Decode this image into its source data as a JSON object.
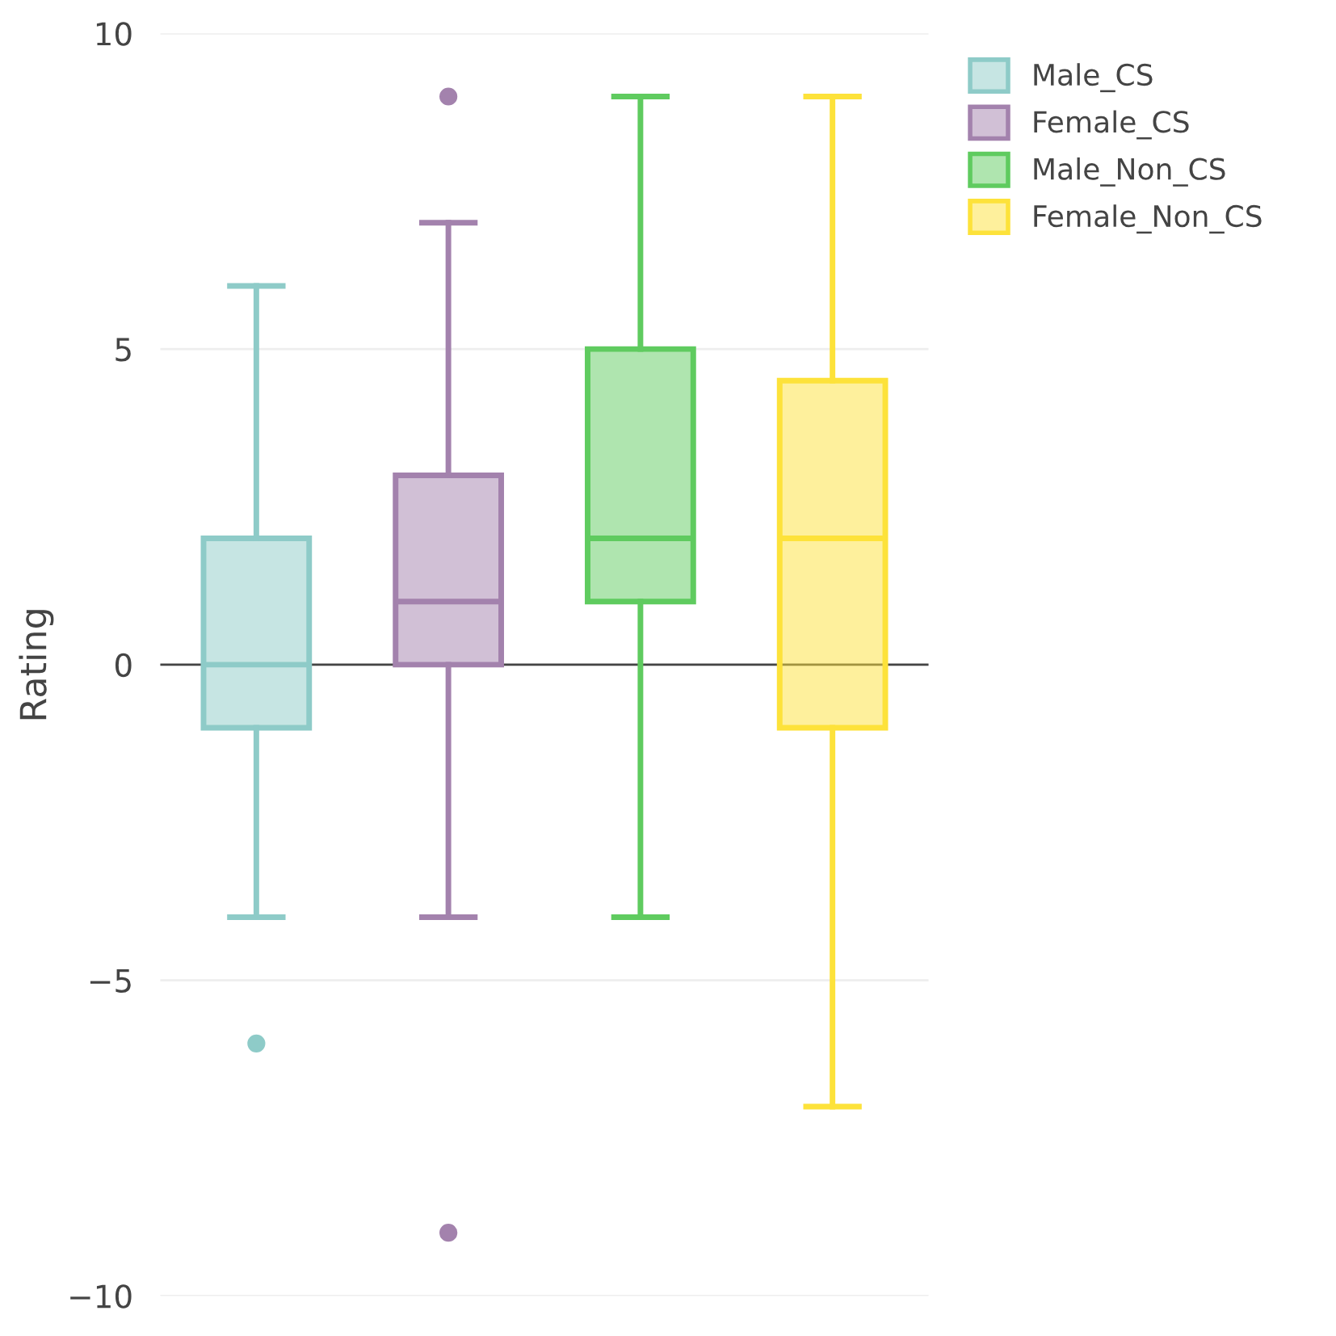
{
  "chart_data": {
    "type": "box",
    "ylabel": "Rating",
    "categories": [
      null,
      null,
      null,
      null
    ],
    "series": [
      {
        "name": "Male_CS",
        "color": "#8ecbc8",
        "boxes": [
          {
            "low": -4,
            "q1": -1,
            "median": 0,
            "q3": 2,
            "high": 6,
            "outliers": [
              -6
            ]
          },
          null,
          null,
          null
        ]
      },
      {
        "name": "Female_CS",
        "color": "#a382ad",
        "boxes": [
          null,
          {
            "low": -4,
            "q1": 0,
            "median": 1,
            "q3": 3,
            "high": 7,
            "outliers": [
              9,
              -9
            ]
          },
          null,
          null
        ]
      },
      {
        "name": "Male_Non_CS",
        "color": "#5fcb5f",
        "boxes": [
          null,
          null,
          {
            "low": -4,
            "q1": 1,
            "median": 2,
            "q3": 5,
            "high": 9
          },
          null
        ]
      },
      {
        "name": "Female_Non_CS",
        "color": "#fde23a",
        "boxes": [
          null,
          null,
          null,
          {
            "low": -7,
            "q1": -1,
            "median": 2,
            "q3": 4.5,
            "high": 9
          }
        ]
      }
    ],
    "ylim": [
      -10,
      10
    ],
    "yticks": [
      {
        "value": -10,
        "label": "−10"
      },
      {
        "value": -5,
        "label": "−5"
      },
      0,
      5,
      10
    ],
    "ref_lines": [
      {
        "axis": "y",
        "value": 0,
        "label": null,
        "color": "#444444"
      }
    ],
    "grid": "y",
    "legend": "top right",
    "tick_labels": "y"
  }
}
